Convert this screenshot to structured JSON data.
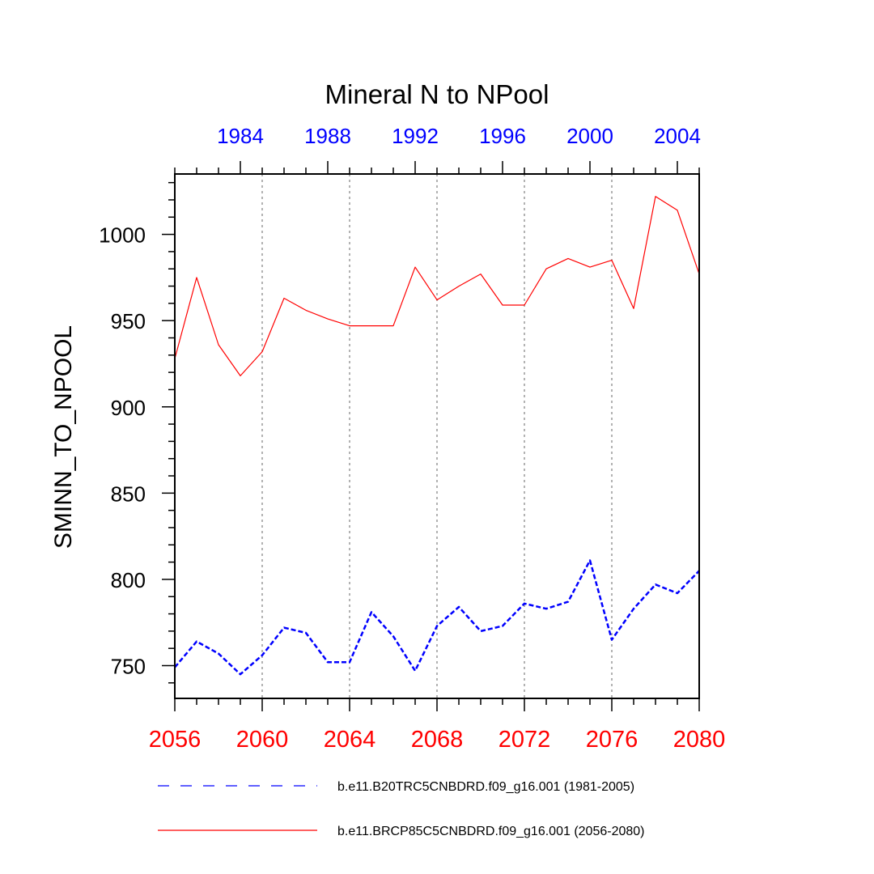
{
  "chart_data": {
    "type": "line",
    "title": "Mineral N to NPool",
    "ylabel": "SMINN_TO_NPOOL",
    "ylim": [
      731,
      1035
    ],
    "grid": "vertical dotted lines at major bottom ticks",
    "legend_placement": "bottom",
    "bottom_axis": {
      "range": [
        2056,
        2080
      ],
      "tick_labels": [
        "2056",
        "2060",
        "2064",
        "2068",
        "2072",
        "2076",
        "2080"
      ],
      "color": "#ff0000"
    },
    "top_axis": {
      "range": [
        1981,
        2005
      ],
      "tick_labels": [
        "1984",
        "1988",
        "1992",
        "1996",
        "2000",
        "2004"
      ],
      "color": "#0000ff"
    },
    "y_tick_labels": [
      "750",
      "800",
      "850",
      "900",
      "950",
      "1000"
    ],
    "series": [
      {
        "name": "b.e11.B20TRC5CNBDRD.f09_g16.001 (1981-2005)",
        "color": "#0000ff",
        "dash": "dashed",
        "axis": "top",
        "x": [
          1981,
          1982,
          1983,
          1984,
          1985,
          1986,
          1987,
          1988,
          1989,
          1990,
          1991,
          1992,
          1993,
          1994,
          1995,
          1996,
          1997,
          1998,
          1999,
          2000,
          2001,
          2002,
          2003,
          2004,
          2005
        ],
        "values": [
          749,
          764,
          757,
          745,
          756,
          772,
          769,
          752,
          752,
          781,
          767,
          747,
          773,
          784,
          770,
          773,
          786,
          783,
          787,
          811,
          765,
          783,
          797,
          792,
          805
        ]
      },
      {
        "name": "b.e11.BRCP85C5CNBDRD.f09_g16.001 (2056-2080)",
        "color": "#ff0000",
        "dash": "solid",
        "axis": "bottom",
        "x": [
          2056,
          2057,
          2058,
          2059,
          2060,
          2061,
          2062,
          2063,
          2064,
          2065,
          2066,
          2067,
          2068,
          2069,
          2070,
          2071,
          2072,
          2073,
          2074,
          2075,
          2076,
          2077,
          2078,
          2079,
          2080
        ],
        "values": [
          928,
          975,
          936,
          918,
          932,
          963,
          956,
          951,
          947,
          947,
          947,
          981,
          962,
          970,
          977,
          959,
          959,
          980,
          986,
          981,
          985,
          957,
          1022,
          1014,
          977
        ]
      }
    ]
  }
}
